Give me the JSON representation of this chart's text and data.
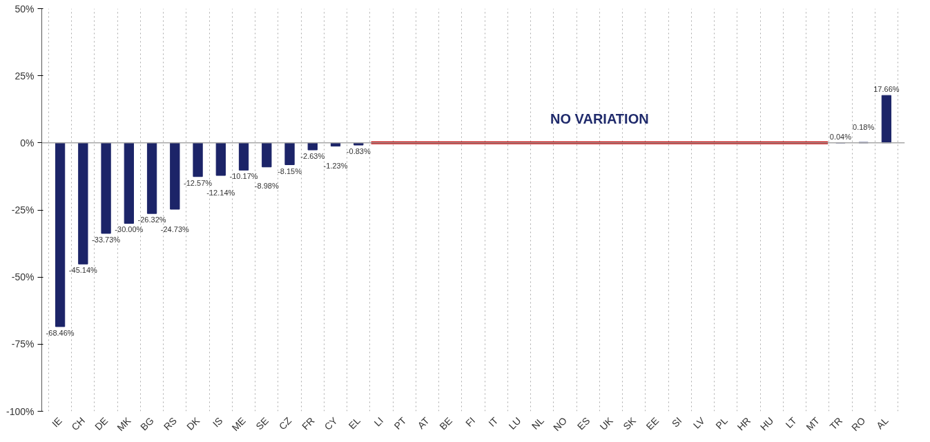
{
  "chart_data": {
    "type": "bar",
    "categories": [
      "IE",
      "CH",
      "DE",
      "MK",
      "BG",
      "RS",
      "DK",
      "IS",
      "ME",
      "SE",
      "CZ",
      "FR",
      "CY",
      "EL",
      "LI",
      "PT",
      "AT",
      "BE",
      "FI",
      "IT",
      "LU",
      "NL",
      "NO",
      "ES",
      "UK",
      "SK",
      "EE",
      "SI",
      "LV",
      "PL",
      "HR",
      "HU",
      "LT",
      "MT",
      "TR",
      "RO",
      "AL"
    ],
    "series": [
      {
        "color": "#1c2468",
        "values": [
          -68.46,
          -45.14,
          -33.73,
          -30.0,
          -26.32,
          -24.73,
          -12.57,
          -12.14,
          -10.17,
          -8.98,
          -8.15,
          -2.63,
          -1.23,
          -0.83,
          0,
          0,
          0,
          0,
          0,
          0,
          0,
          0,
          0,
          0,
          0,
          0,
          0,
          0,
          0,
          0,
          0,
          0,
          0,
          0,
          0.04,
          0.18,
          17.66
        ],
        "value_labels": [
          "-68.46%",
          "-45.14%",
          "-33.73%",
          "-30.00%",
          "-26.32%",
          "-24.73%",
          "-12.57%",
          "-12.14%",
          "-10.17%",
          "-8.98%",
          "-8.15%",
          "-2.63%",
          "-1.23%",
          "-0.83%",
          null,
          null,
          null,
          null,
          null,
          null,
          null,
          null,
          null,
          null,
          null,
          null,
          null,
          null,
          null,
          null,
          null,
          null,
          null,
          null,
          "0.04%",
          "0.18%",
          "17.66%"
        ]
      }
    ],
    "ylim": [
      -100,
      50
    ],
    "yticks": [
      {
        "value": -100,
        "label": "-100%"
      },
      {
        "value": -75,
        "label": "-75%"
      },
      {
        "value": -50,
        "label": "-50%"
      },
      {
        "value": -25,
        "label": "-25%"
      },
      {
        "value": 0,
        "label": "0%"
      },
      {
        "value": 25,
        "label": "25%"
      },
      {
        "value": 50,
        "label": "50%"
      }
    ],
    "grid": "x",
    "ref_lines": [
      {
        "axis": "y",
        "value": 0,
        "color": "#a6a6a6"
      }
    ],
    "annotations": [
      "NO VARIATION"
    ]
  }
}
